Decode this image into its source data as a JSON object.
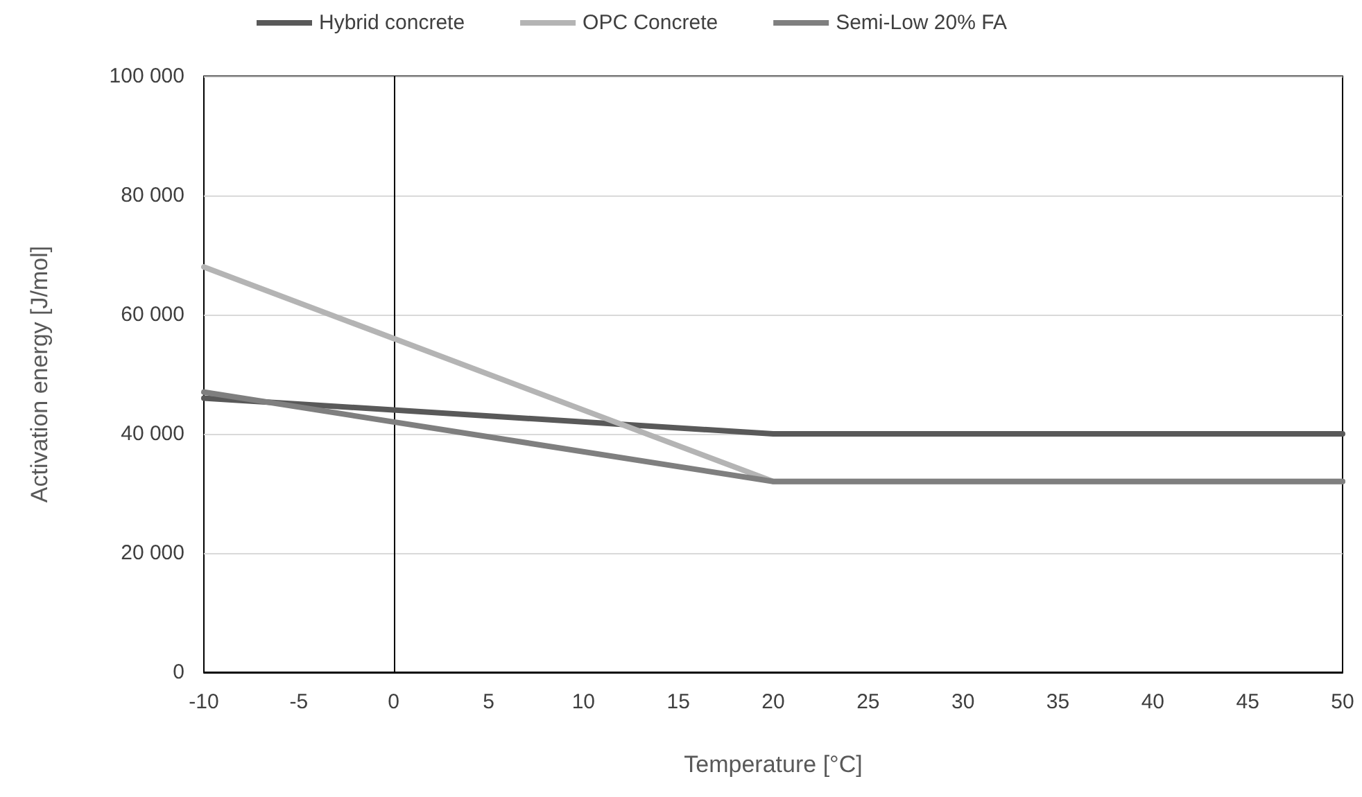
{
  "chart_data": {
    "type": "line",
    "xlabel": "Temperature [°C]",
    "ylabel": "Activation energy [J/mol]",
    "x": [
      -10,
      20,
      50
    ],
    "series": [
      {
        "name": "Hybrid concrete",
        "color": "#595959",
        "values": [
          46000,
          40000,
          40000
        ]
      },
      {
        "name": "OPC Concrete",
        "color": "#b4b4b4",
        "values": [
          68000,
          32000,
          32000
        ]
      },
      {
        "name": "Semi-Low 20% FA",
        "color": "#7f7f7f",
        "values": [
          47000,
          32000,
          32000
        ]
      }
    ],
    "xlim": [
      -10,
      50
    ],
    "xticks": [
      -10,
      -5,
      0,
      5,
      10,
      15,
      20,
      25,
      30,
      35,
      40,
      45,
      50
    ],
    "ylim": [
      0,
      100000
    ],
    "yticks": [
      0,
      {
        "value": 20000,
        "label": "20 000"
      },
      {
        "value": 40000,
        "label": "40 000"
      },
      {
        "value": 60000,
        "label": "60 000"
      },
      {
        "value": 80000,
        "label": "80 000"
      },
      {
        "value": 100000,
        "label": "100 000"
      }
    ],
    "grid": "y",
    "legend": "top left",
    "marker": "none",
    "line_style": "solid"
  }
}
